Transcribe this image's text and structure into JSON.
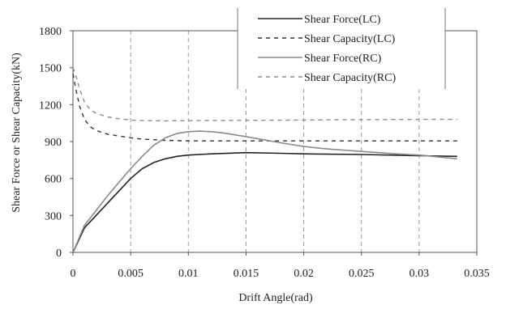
{
  "chart_data": {
    "type": "line",
    "xlabel": "Drift Angle(rad)",
    "ylabel": "Shear Force or Shear Capacity(kN)",
    "xlim": [
      0,
      0.035
    ],
    "ylim": [
      0,
      1800
    ],
    "xticks": [
      0,
      0.005,
      0.01,
      0.015,
      0.02,
      0.025,
      0.03,
      0.035
    ],
    "xtick_labels": [
      "0",
      "0.005",
      "0.01",
      "0.015",
      "0.02",
      "0.025",
      "0.03",
      "0.035"
    ],
    "yticks": [
      0,
      300,
      600,
      900,
      1200,
      1500,
      1800
    ],
    "ytick_labels": [
      "0",
      "300",
      "600",
      "900",
      "1200",
      "1500",
      "1800"
    ],
    "grid": "vertical dashed",
    "legend_position": "top-right",
    "series": [
      {
        "name": "Shear Force(LC)",
        "style": "solid",
        "color": "#222222",
        "x": [
          0,
          0.001,
          0.002,
          0.003,
          0.004,
          0.005,
          0.006,
          0.007,
          0.008,
          0.009,
          0.01,
          0.012,
          0.015,
          0.018,
          0.02,
          0.025,
          0.03,
          0.0333
        ],
        "y": [
          0,
          200,
          300,
          400,
          500,
          600,
          680,
          730,
          760,
          780,
          790,
          800,
          810,
          805,
          800,
          795,
          785,
          780
        ]
      },
      {
        "name": "Shear Capacity(LC)",
        "style": "dashed",
        "color": "#333333",
        "x": [
          0,
          0.0003,
          0.0006,
          0.001,
          0.0015,
          0.002,
          0.003,
          0.004,
          0.005,
          0.006,
          0.008,
          0.01,
          0.012,
          0.015,
          0.02,
          0.025,
          0.03,
          0.0333
        ],
        "y": [
          1450,
          1300,
          1180,
          1080,
          1020,
          990,
          960,
          945,
          930,
          920,
          910,
          905,
          905,
          905,
          905,
          905,
          905,
          905
        ]
      },
      {
        "name": "Shear Force(RC)",
        "style": "solid",
        "color": "#8a8a8a",
        "x": [
          0,
          0.001,
          0.002,
          0.003,
          0.004,
          0.005,
          0.006,
          0.007,
          0.008,
          0.009,
          0.01,
          0.011,
          0.012,
          0.013,
          0.015,
          0.018,
          0.02,
          0.022,
          0.025,
          0.028,
          0.03,
          0.0333
        ],
        "y": [
          0,
          220,
          340,
          460,
          570,
          680,
          780,
          870,
          930,
          965,
          980,
          985,
          980,
          970,
          940,
          890,
          860,
          840,
          820,
          800,
          790,
          760
        ]
      },
      {
        "name": "Shear Capacity(RC)",
        "style": "dashed",
        "color": "#8a8a8a",
        "x": [
          0,
          0.0003,
          0.0006,
          0.001,
          0.0015,
          0.002,
          0.003,
          0.004,
          0.005,
          0.006,
          0.008,
          0.01,
          0.015,
          0.02,
          0.025,
          0.03,
          0.0333
        ],
        "y": [
          1500,
          1420,
          1320,
          1220,
          1160,
          1130,
          1100,
          1085,
          1075,
          1070,
          1068,
          1070,
          1072,
          1075,
          1078,
          1080,
          1080
        ]
      }
    ]
  }
}
